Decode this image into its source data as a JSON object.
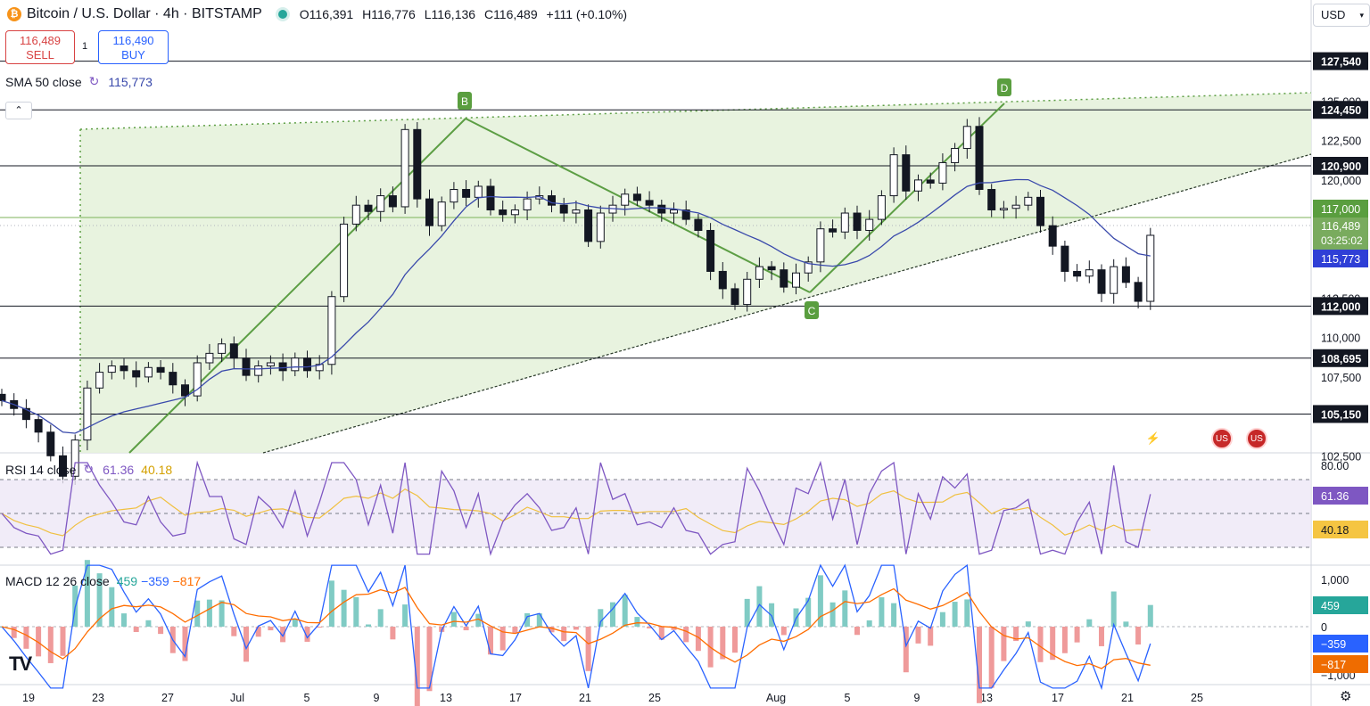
{
  "header": {
    "coin_icon": "bitcoin-icon",
    "coin_symbol": "₿",
    "title": "Bitcoin / U.S. Dollar · 4h · BITSTAMP",
    "open": "O116,391",
    "high": "H116,776",
    "low": "L116,136",
    "close": "C116,489",
    "change": "+111 (+0.10%)"
  },
  "trade": {
    "sell_price": "116,489",
    "sell_label": "SELL",
    "spread": "1",
    "buy_price": "116,490",
    "buy_label": "BUY"
  },
  "indicators": {
    "sma": {
      "label": "SMA 50 close",
      "value": "115,773",
      "icon": "cycle-icon",
      "color": "#3949ab"
    },
    "rsi": {
      "label": "RSI 14 close",
      "value": "61.36",
      "ma": "40.18",
      "icon": "cycle-icon",
      "color": "#7e57c2",
      "ma_color": "#f0b400"
    },
    "macd": {
      "label": "MACD 12 26 close",
      "hist": "459",
      "macd": "−359",
      "signal": "−817",
      "hist_color": "#26a69a",
      "macd_color": "#2962ff",
      "signal_color": "#ff6d00"
    }
  },
  "toolbar": {
    "currency": "USD",
    "currency_icon": "chevron-down-icon",
    "collapse_icon": "chevron-up-icon",
    "settings_icon": "gear-icon",
    "logo": "TV"
  },
  "events": {
    "bolt_icon": "lightning-icon",
    "flag_icon": "us-flag-icon"
  },
  "colors": {
    "up": "#26a69a",
    "down": "#ef5350",
    "candle": "#131722",
    "pattern_fill": "#e6f2dc",
    "pattern_line": "#5c9e44",
    "sma": "#3949ab"
  },
  "chart_data": {
    "type": "candlestick",
    "price_axis_ticks": [
      "102,500",
      "105,000",
      "107,500",
      "110,000",
      "112,500",
      "115,000",
      "117,500",
      "120,000",
      "122,500",
      "125,000"
    ],
    "time_axis_ticks": [
      "19",
      "23",
      "27",
      "Jul",
      "5",
      "9",
      "13",
      "17",
      "21",
      "25",
      "Aug",
      "5",
      "9",
      "13",
      "17",
      "21",
      "25"
    ],
    "levels": [
      {
        "label": "127,540",
        "value": 127540
      },
      {
        "label": "124,450",
        "value": 124450
      },
      {
        "label": "120,900",
        "value": 120900
      },
      {
        "label": "112,000",
        "value": 112000
      },
      {
        "label": "108,695",
        "value": 108695
      },
      {
        "label": "105,150",
        "value": 105150
      }
    ],
    "price_labels": {
      "green_level": "117,000",
      "last": "116,489",
      "countdown": "03:25:02",
      "sma": "115,773"
    },
    "pattern_points": [
      "B",
      "C",
      "D"
    ],
    "close_series": [
      106000,
      105500,
      104800,
      104000,
      102500,
      101200,
      103500,
      106800,
      107800,
      108200,
      107900,
      107500,
      108100,
      107800,
      107000,
      106300,
      108400,
      109000,
      109600,
      108700,
      107600,
      108200,
      108400,
      107900,
      108700,
      107900,
      108300,
      112600,
      117200,
      118400,
      118000,
      119000,
      118300,
      123200,
      118800,
      117100,
      118600,
      119400,
      118900,
      119600,
      118100,
      117800,
      118100,
      118800,
      119000,
      118400,
      117900,
      118100,
      116100,
      117900,
      118400,
      119100,
      118700,
      118400,
      117900,
      118100,
      117500,
      116800,
      114200,
      113100,
      112100,
      113700,
      114500,
      114300,
      113200,
      114100,
      114800,
      116900,
      116700,
      117900,
      116800,
      117500,
      119000,
      121600,
      119300,
      120000,
      119800,
      121100,
      122000,
      123400,
      119400,
      118100,
      118200,
      118400,
      118900,
      117100,
      115800,
      114200,
      113900,
      114300,
      112800,
      114500,
      113500,
      112300,
      116489
    ],
    "rsi": {
      "ylim": [
        20,
        80
      ],
      "ticks": [
        "80.00"
      ],
      "levels": [
        70,
        50,
        30
      ],
      "last": 61.36,
      "ma_last": 40.18
    },
    "macd": {
      "ticks": [
        "1,000",
        "0",
        "−1,000"
      ],
      "hist_last": 459,
      "macd_last": -359,
      "signal_last": -817
    }
  }
}
